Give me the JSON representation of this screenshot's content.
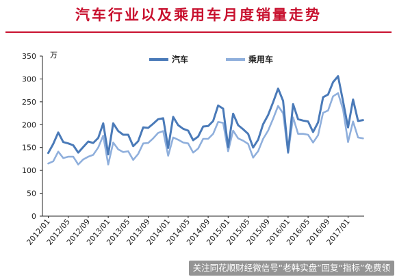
{
  "page": {
    "title": "汽车行业以及乘用车月度销量走势",
    "watermark": "关注同花顺财经微信号“老韩实盘”回复“指标”免费领"
  },
  "chart_data": {
    "type": "line",
    "unit_label": "万",
    "ylim": [
      0,
      350
    ],
    "yticks": [
      0,
      50,
      100,
      150,
      200,
      250,
      300,
      350
    ],
    "grid": false,
    "legend_position": "top",
    "x_tick_labels": [
      "2012/01",
      "2012/05",
      "2012/09",
      "2013/01",
      "2013/05",
      "2013/09",
      "2014/01",
      "2014/05",
      "2014/09",
      "2015/01",
      "2015/05",
      "2015/09",
      "2016/01",
      "2016/05",
      "2016/09",
      "2017/01"
    ],
    "x_tick_every": 4,
    "categories": [
      "2012/01",
      "2012/02",
      "2012/03",
      "2012/04",
      "2012/05",
      "2012/06",
      "2012/07",
      "2012/08",
      "2012/09",
      "2012/10",
      "2012/11",
      "2012/12",
      "2013/01",
      "2013/02",
      "2013/03",
      "2013/04",
      "2013/05",
      "2013/06",
      "2013/07",
      "2013/08",
      "2013/09",
      "2013/10",
      "2013/11",
      "2013/12",
      "2014/01",
      "2014/02",
      "2014/03",
      "2014/04",
      "2014/05",
      "2014/06",
      "2014/07",
      "2014/08",
      "2014/09",
      "2014/10",
      "2014/11",
      "2014/12",
      "2015/01",
      "2015/02",
      "2015/03",
      "2015/04",
      "2015/05",
      "2015/06",
      "2015/07",
      "2015/08",
      "2015/09",
      "2015/10",
      "2015/11",
      "2015/12",
      "2016/01",
      "2016/02",
      "2016/03",
      "2016/04",
      "2016/05",
      "2016/06",
      "2016/07",
      "2016/08",
      "2016/09",
      "2016/10",
      "2016/11",
      "2016/12",
      "2017/01",
      "2017/02",
      "2017/03",
      "2017/04"
    ],
    "series": [
      {
        "name": "汽车",
        "color": "#4a7ab8",
        "values": [
          138,
          158,
          183,
          162,
          159,
          155,
          139,
          151,
          163,
          160,
          171,
          203,
          135,
          203,
          186,
          178,
          178,
          153,
          164,
          194,
          193,
          202,
          212,
          214,
          149,
          217,
          199,
          191,
          187,
          166,
          174,
          196,
          197,
          208,
          242,
          235,
          151,
          224,
          199,
          190,
          180,
          150,
          167,
          201,
          221,
          249,
          279,
          252,
          140,
          245,
          212,
          209,
          207,
          184,
          205,
          260,
          266,
          293,
          306,
          251,
          194,
          255,
          208,
          210
        ]
      },
      {
        "name": "乘用车",
        "color": "#8fafdc",
        "values": [
          115,
          120,
          141,
          127,
          130,
          130,
          113,
          124,
          130,
          134,
          150,
          176,
          113,
          161,
          146,
          140,
          142,
          123,
          136,
          159,
          160,
          170,
          182,
          186,
          132,
          172,
          167,
          161,
          159,
          139,
          148,
          169,
          169,
          180,
          206,
          204,
          142,
          187,
          170,
          165,
          158,
          128,
          142,
          169,
          187,
          213,
          241,
          225,
          138,
          216,
          180,
          180,
          178,
          161,
          177,
          226,
          231,
          262,
          269,
          233,
          162,
          207,
          172,
          170
        ]
      }
    ]
  }
}
